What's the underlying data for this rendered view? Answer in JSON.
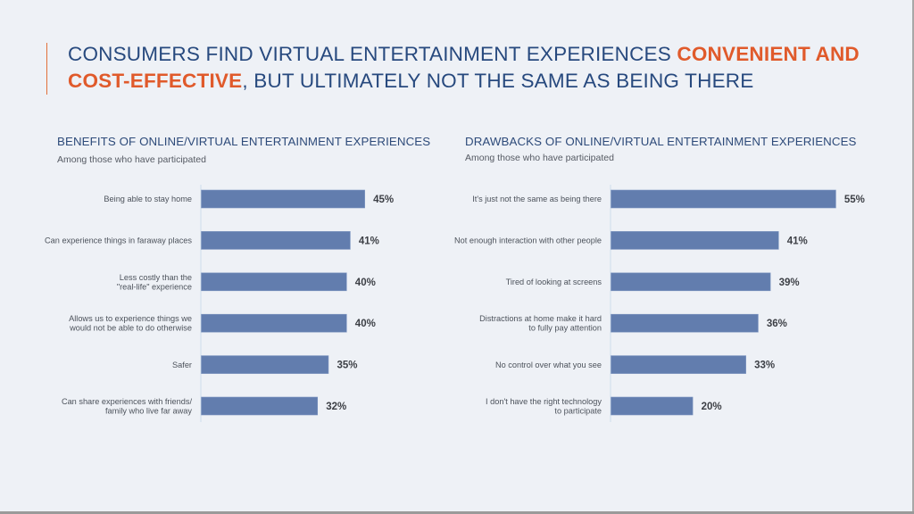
{
  "headline": {
    "part1": "CONSUMERS FIND VIRTUAL ENTERTAINMENT EXPERIENCES ",
    "highlight": "CONVENIENT AND COST-EFFECTIVE",
    "part2": ", BUT ULTIMATELY NOT THE SAME AS BEING THERE"
  },
  "colors": {
    "bar": "#627dae",
    "title": "#27497e",
    "highlight": "#e05a2b",
    "axis": "#d8e4ef"
  },
  "chart_data": [
    {
      "type": "bar",
      "orientation": "horizontal",
      "title": "BENEFITS OF ONLINE/VIRTUAL ENTERTAINMENT EXPERIENCES",
      "subtitle": "Among those who have participated",
      "categories": [
        [
          "Being able to stay home"
        ],
        [
          "Can experience things in faraway places"
        ],
        [
          "Less costly than the",
          "\"real-life\" experience"
        ],
        [
          "Allows us to experience things we",
          "would not be able to do otherwise"
        ],
        [
          "Safer"
        ],
        [
          "Can share experiences with friends/",
          "family who live far away"
        ]
      ],
      "values": [
        45,
        41,
        40,
        40,
        35,
        32
      ],
      "value_labels": [
        "45%",
        "41%",
        "40%",
        "40%",
        "35%",
        "32%"
      ],
      "unit": "%",
      "xlim": [
        0,
        50
      ],
      "grid": false,
      "legend": "none"
    },
    {
      "type": "bar",
      "orientation": "horizontal",
      "title": "DRAWBACKS OF ONLINE/VIRTUAL ENTERTAINMENT EXPERIENCES",
      "subtitle": "Among those who have participated",
      "categories": [
        [
          "It's just not the same as being there"
        ],
        [
          "Not enough interaction with other people"
        ],
        [
          "Tired of looking at screens"
        ],
        [
          "Distractions at home make it hard",
          "to fully pay attention"
        ],
        [
          "No control over what you see"
        ],
        [
          "I don't have the right technology",
          "to participate"
        ]
      ],
      "values": [
        55,
        41,
        39,
        36,
        33,
        20
      ],
      "value_labels": [
        "55%",
        "41%",
        "39%",
        "36%",
        "33%",
        "20%"
      ],
      "unit": "%",
      "xlim": [
        0,
        60
      ],
      "grid": false,
      "legend": "none"
    }
  ]
}
